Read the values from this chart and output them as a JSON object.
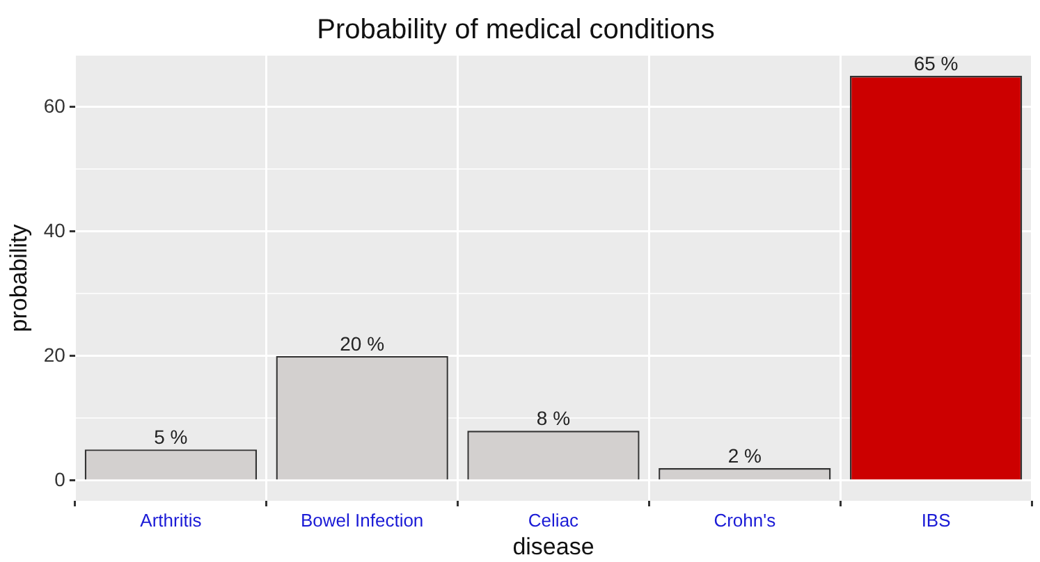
{
  "chart_data": {
    "type": "bar",
    "title": "Probability of medical conditions",
    "xlabel": "disease",
    "ylabel": "probability",
    "categories": [
      "Arthritis",
      "Bowel Infection",
      "Celiac",
      "Crohn's",
      "IBS"
    ],
    "values": [
      5,
      20,
      8,
      2,
      65
    ],
    "colors": [
      "#d3d0cf",
      "#d3d0cf",
      "#d3d0cf",
      "#d3d0cf",
      "#cc0000"
    ],
    "value_labels": [
      "5 %",
      "20 %",
      "8 %",
      "2 %",
      "65 %"
    ],
    "ylim": [
      -3.25,
      68.25
    ],
    "yticks": [
      0,
      {
        "value": 10,
        "label": null
      },
      20,
      {
        "value": 30,
        "label": null
      },
      40,
      {
        "value": 50,
        "label": null
      },
      60
    ],
    "grid": true,
    "legend": false
  }
}
